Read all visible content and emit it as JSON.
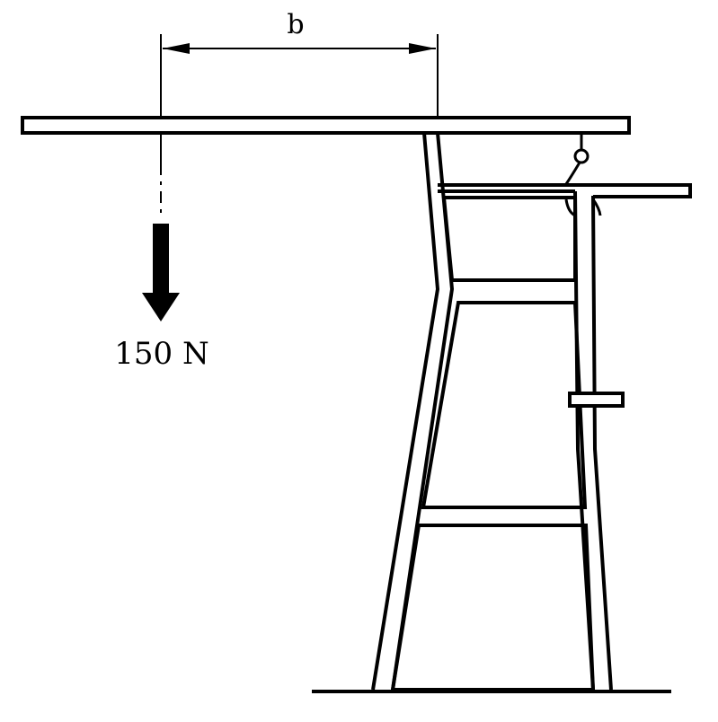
{
  "dimension": {
    "label": "b"
  },
  "load": {
    "label": "150 N"
  },
  "colors": {
    "ink": "#000000",
    "paper": "#ffffff"
  }
}
